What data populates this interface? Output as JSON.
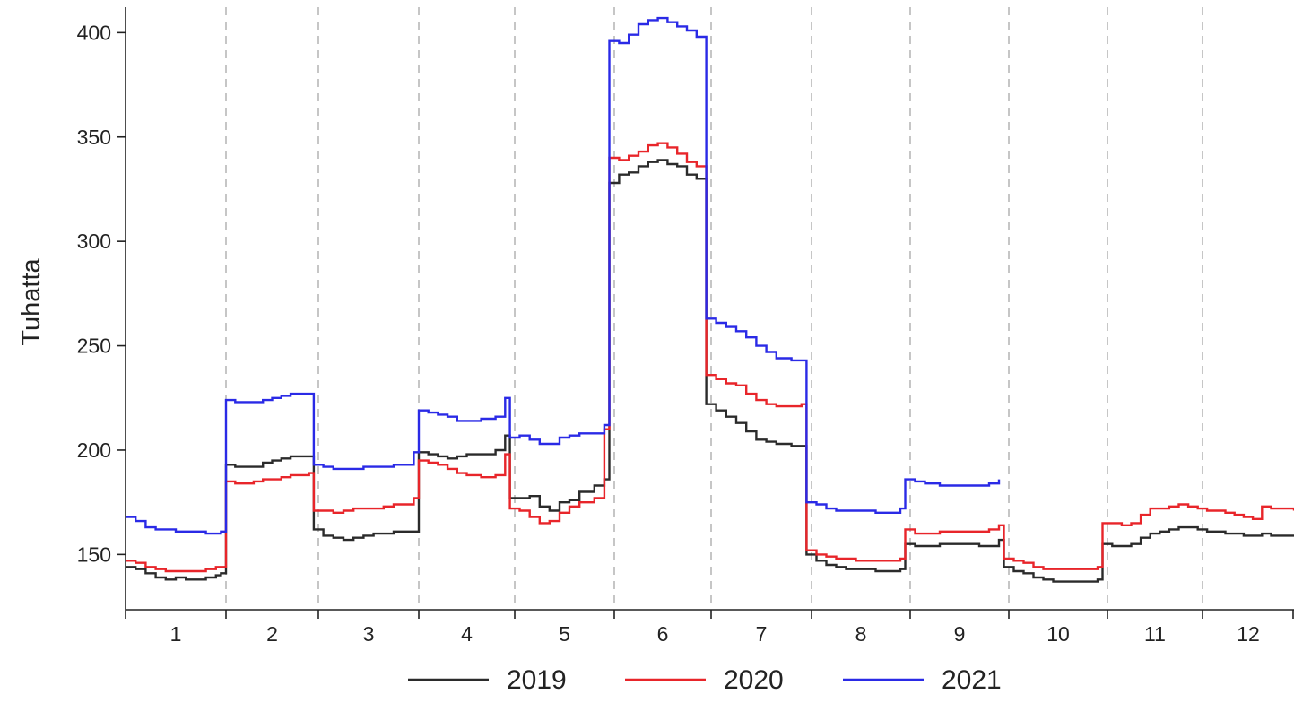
{
  "chart_data": {
    "type": "line",
    "title": "",
    "xlabel": "",
    "ylabel": "Tuhatta",
    "x_range": [
      0.5,
      12.5
    ],
    "ylim": [
      126,
      415
    ],
    "yticks": [
      150,
      200,
      250,
      300,
      350,
      400
    ],
    "categories": [
      "1",
      "2",
      "3",
      "4",
      "5",
      "6",
      "7",
      "8",
      "9",
      "10",
      "11",
      "12"
    ],
    "grid": "vertical dashed lines at month boundaries",
    "legend": "bottom",
    "series": [
      {
        "name": "2019",
        "color": "#2b2b2b",
        "points": [
          [
            0.5,
            144
          ],
          [
            0.6,
            143
          ],
          [
            0.7,
            141
          ],
          [
            0.8,
            139
          ],
          [
            0.9,
            138
          ],
          [
            1.0,
            139
          ],
          [
            1.1,
            138
          ],
          [
            1.2,
            138
          ],
          [
            1.3,
            139
          ],
          [
            1.4,
            140
          ],
          [
            1.45,
            141
          ],
          [
            1.5,
            193
          ],
          [
            1.6,
            192
          ],
          [
            1.7,
            192
          ],
          [
            1.8,
            192
          ],
          [
            1.9,
            194
          ],
          [
            2.0,
            195
          ],
          [
            2.1,
            196
          ],
          [
            2.2,
            197
          ],
          [
            2.4,
            197
          ],
          [
            2.45,
            162
          ],
          [
            2.55,
            159
          ],
          [
            2.65,
            158
          ],
          [
            2.75,
            157
          ],
          [
            2.85,
            158
          ],
          [
            2.95,
            159
          ],
          [
            3.05,
            160
          ],
          [
            3.15,
            160
          ],
          [
            3.25,
            161
          ],
          [
            3.45,
            161
          ],
          [
            3.5,
            199
          ],
          [
            3.6,
            198
          ],
          [
            3.7,
            197
          ],
          [
            3.8,
            196
          ],
          [
            3.9,
            197
          ],
          [
            4.0,
            198
          ],
          [
            4.15,
            198
          ],
          [
            4.3,
            200
          ],
          [
            4.4,
            207
          ],
          [
            4.45,
            177
          ],
          [
            4.55,
            177
          ],
          [
            4.65,
            178
          ],
          [
            4.75,
            173
          ],
          [
            4.85,
            171
          ],
          [
            4.95,
            175
          ],
          [
            5.05,
            176
          ],
          [
            5.15,
            180
          ],
          [
            5.3,
            183
          ],
          [
            5.4,
            186
          ],
          [
            5.45,
            328
          ],
          [
            5.55,
            332
          ],
          [
            5.65,
            333
          ],
          [
            5.75,
            336
          ],
          [
            5.85,
            338
          ],
          [
            5.95,
            339
          ],
          [
            6.05,
            337
          ],
          [
            6.15,
            336
          ],
          [
            6.25,
            332
          ],
          [
            6.35,
            330
          ],
          [
            6.45,
            222
          ],
          [
            6.55,
            219
          ],
          [
            6.65,
            216
          ],
          [
            6.75,
            213
          ],
          [
            6.85,
            209
          ],
          [
            6.95,
            205
          ],
          [
            7.05,
            204
          ],
          [
            7.15,
            203
          ],
          [
            7.3,
            202
          ],
          [
            7.4,
            202
          ],
          [
            7.45,
            150
          ],
          [
            7.55,
            147
          ],
          [
            7.65,
            145
          ],
          [
            7.75,
            144
          ],
          [
            7.85,
            143
          ],
          [
            7.95,
            143
          ],
          [
            8.05,
            143
          ],
          [
            8.15,
            142
          ],
          [
            8.3,
            142
          ],
          [
            8.4,
            143
          ],
          [
            8.45,
            155
          ],
          [
            8.55,
            154
          ],
          [
            8.65,
            154
          ],
          [
            8.8,
            155
          ],
          [
            8.95,
            155
          ],
          [
            9.1,
            155
          ],
          [
            9.2,
            154
          ],
          [
            9.3,
            154
          ],
          [
            9.4,
            157
          ],
          [
            9.45,
            144
          ],
          [
            9.55,
            142
          ],
          [
            9.65,
            141
          ],
          [
            9.75,
            139
          ],
          [
            9.85,
            138
          ],
          [
            9.95,
            137
          ],
          [
            10.05,
            137
          ],
          [
            10.15,
            137
          ],
          [
            10.3,
            137
          ],
          [
            10.4,
            138
          ],
          [
            10.45,
            155
          ],
          [
            10.55,
            154
          ],
          [
            10.65,
            154
          ],
          [
            10.75,
            155
          ],
          [
            10.85,
            158
          ],
          [
            10.95,
            160
          ],
          [
            11.05,
            161
          ],
          [
            11.15,
            162
          ],
          [
            11.25,
            163
          ],
          [
            11.35,
            163
          ],
          [
            11.45,
            162
          ],
          [
            11.55,
            161
          ],
          [
            11.65,
            161
          ],
          [
            11.75,
            160
          ],
          [
            11.85,
            160
          ],
          [
            11.95,
            159
          ],
          [
            12.05,
            159
          ],
          [
            12.15,
            160
          ],
          [
            12.25,
            159
          ],
          [
            12.5,
            159
          ]
        ]
      },
      {
        "name": "2020",
        "color": "#e8252a",
        "points": [
          [
            0.5,
            147
          ],
          [
            0.6,
            146
          ],
          [
            0.7,
            144
          ],
          [
            0.8,
            143
          ],
          [
            0.9,
            142
          ],
          [
            1.0,
            142
          ],
          [
            1.1,
            142
          ],
          [
            1.2,
            142
          ],
          [
            1.3,
            143
          ],
          [
            1.4,
            144
          ],
          [
            1.45,
            144
          ],
          [
            1.5,
            185
          ],
          [
            1.6,
            184
          ],
          [
            1.7,
            184
          ],
          [
            1.8,
            185
          ],
          [
            1.9,
            186
          ],
          [
            2.0,
            186
          ],
          [
            2.1,
            187
          ],
          [
            2.2,
            188
          ],
          [
            2.4,
            189
          ],
          [
            2.45,
            171
          ],
          [
            2.55,
            171
          ],
          [
            2.65,
            170
          ],
          [
            2.75,
            171
          ],
          [
            2.85,
            172
          ],
          [
            2.95,
            172
          ],
          [
            3.05,
            172
          ],
          [
            3.15,
            173
          ],
          [
            3.25,
            174
          ],
          [
            3.45,
            177
          ],
          [
            3.5,
            195
          ],
          [
            3.6,
            194
          ],
          [
            3.7,
            193
          ],
          [
            3.8,
            191
          ],
          [
            3.9,
            189
          ],
          [
            4.0,
            188
          ],
          [
            4.15,
            187
          ],
          [
            4.3,
            188
          ],
          [
            4.4,
            198
          ],
          [
            4.45,
            172
          ],
          [
            4.55,
            171
          ],
          [
            4.65,
            168
          ],
          [
            4.75,
            165
          ],
          [
            4.85,
            166
          ],
          [
            4.95,
            170
          ],
          [
            5.05,
            173
          ],
          [
            5.15,
            175
          ],
          [
            5.3,
            177
          ],
          [
            5.4,
            210
          ],
          [
            5.45,
            340
          ],
          [
            5.55,
            339
          ],
          [
            5.65,
            341
          ],
          [
            5.75,
            343
          ],
          [
            5.85,
            346
          ],
          [
            5.95,
            347
          ],
          [
            6.05,
            345
          ],
          [
            6.15,
            342
          ],
          [
            6.25,
            338
          ],
          [
            6.35,
            336
          ],
          [
            6.45,
            236
          ],
          [
            6.55,
            234
          ],
          [
            6.65,
            232
          ],
          [
            6.75,
            231
          ],
          [
            6.85,
            227
          ],
          [
            6.95,
            224
          ],
          [
            7.05,
            222
          ],
          [
            7.15,
            221
          ],
          [
            7.3,
            221
          ],
          [
            7.4,
            222
          ],
          [
            7.45,
            152
          ],
          [
            7.55,
            150
          ],
          [
            7.65,
            149
          ],
          [
            7.75,
            148
          ],
          [
            7.85,
            148
          ],
          [
            7.95,
            147
          ],
          [
            8.05,
            147
          ],
          [
            8.15,
            147
          ],
          [
            8.3,
            147
          ],
          [
            8.4,
            148
          ],
          [
            8.45,
            162
          ],
          [
            8.55,
            160
          ],
          [
            8.65,
            160
          ],
          [
            8.8,
            161
          ],
          [
            8.95,
            161
          ],
          [
            9.1,
            161
          ],
          [
            9.2,
            161
          ],
          [
            9.3,
            162
          ],
          [
            9.4,
            164
          ],
          [
            9.45,
            148
          ],
          [
            9.55,
            147
          ],
          [
            9.65,
            146
          ],
          [
            9.75,
            144
          ],
          [
            9.85,
            143
          ],
          [
            9.95,
            143
          ],
          [
            10.05,
            143
          ],
          [
            10.15,
            143
          ],
          [
            10.3,
            143
          ],
          [
            10.4,
            144
          ],
          [
            10.45,
            165
          ],
          [
            10.55,
            165
          ],
          [
            10.65,
            164
          ],
          [
            10.75,
            165
          ],
          [
            10.85,
            169
          ],
          [
            10.95,
            172
          ],
          [
            11.05,
            172
          ],
          [
            11.15,
            173
          ],
          [
            11.25,
            174
          ],
          [
            11.35,
            173
          ],
          [
            11.45,
            172
          ],
          [
            11.55,
            171
          ],
          [
            11.65,
            171
          ],
          [
            11.75,
            170
          ],
          [
            11.85,
            169
          ],
          [
            11.95,
            168
          ],
          [
            12.05,
            167
          ],
          [
            12.15,
            173
          ],
          [
            12.25,
            172
          ],
          [
            12.5,
            171
          ]
        ]
      },
      {
        "name": "2021",
        "color": "#2a2ae6",
        "points": [
          [
            0.5,
            168
          ],
          [
            0.6,
            166
          ],
          [
            0.7,
            163
          ],
          [
            0.8,
            162
          ],
          [
            0.9,
            162
          ],
          [
            1.0,
            161
          ],
          [
            1.1,
            161
          ],
          [
            1.2,
            161
          ],
          [
            1.3,
            160
          ],
          [
            1.4,
            160
          ],
          [
            1.45,
            161
          ],
          [
            1.5,
            224
          ],
          [
            1.6,
            223
          ],
          [
            1.7,
            223
          ],
          [
            1.8,
            223
          ],
          [
            1.9,
            224
          ],
          [
            2.0,
            225
          ],
          [
            2.1,
            226
          ],
          [
            2.2,
            227
          ],
          [
            2.4,
            227
          ],
          [
            2.45,
            193
          ],
          [
            2.55,
            192
          ],
          [
            2.65,
            191
          ],
          [
            2.75,
            191
          ],
          [
            2.85,
            191
          ],
          [
            2.95,
            192
          ],
          [
            3.05,
            192
          ],
          [
            3.15,
            192
          ],
          [
            3.25,
            193
          ],
          [
            3.45,
            199
          ],
          [
            3.5,
            219
          ],
          [
            3.6,
            218
          ],
          [
            3.7,
            217
          ],
          [
            3.8,
            216
          ],
          [
            3.9,
            214
          ],
          [
            4.0,
            214
          ],
          [
            4.15,
            215
          ],
          [
            4.3,
            216
          ],
          [
            4.4,
            225
          ],
          [
            4.45,
            206
          ],
          [
            4.55,
            207
          ],
          [
            4.65,
            205
          ],
          [
            4.75,
            203
          ],
          [
            4.85,
            203
          ],
          [
            4.95,
            206
          ],
          [
            5.05,
            207
          ],
          [
            5.15,
            208
          ],
          [
            5.3,
            208
          ],
          [
            5.4,
            212
          ],
          [
            5.45,
            396
          ],
          [
            5.55,
            395
          ],
          [
            5.65,
            399
          ],
          [
            5.75,
            404
          ],
          [
            5.85,
            406
          ],
          [
            5.95,
            407
          ],
          [
            6.05,
            405
          ],
          [
            6.15,
            403
          ],
          [
            6.25,
            401
          ],
          [
            6.35,
            398
          ],
          [
            6.45,
            263
          ],
          [
            6.55,
            261
          ],
          [
            6.65,
            259
          ],
          [
            6.75,
            257
          ],
          [
            6.85,
            254
          ],
          [
            6.95,
            250
          ],
          [
            7.05,
            247
          ],
          [
            7.15,
            244
          ],
          [
            7.3,
            243
          ],
          [
            7.4,
            243
          ],
          [
            7.45,
            175
          ],
          [
            7.55,
            174
          ],
          [
            7.65,
            172
          ],
          [
            7.75,
            171
          ],
          [
            7.85,
            171
          ],
          [
            7.95,
            171
          ],
          [
            8.05,
            171
          ],
          [
            8.15,
            170
          ],
          [
            8.3,
            170
          ],
          [
            8.4,
            172
          ],
          [
            8.45,
            186
          ],
          [
            8.55,
            185
          ],
          [
            8.65,
            184
          ],
          [
            8.8,
            183
          ],
          [
            8.95,
            183
          ],
          [
            9.1,
            183
          ],
          [
            9.2,
            183
          ],
          [
            9.3,
            184
          ],
          [
            9.4,
            186
          ]
        ]
      }
    ]
  }
}
